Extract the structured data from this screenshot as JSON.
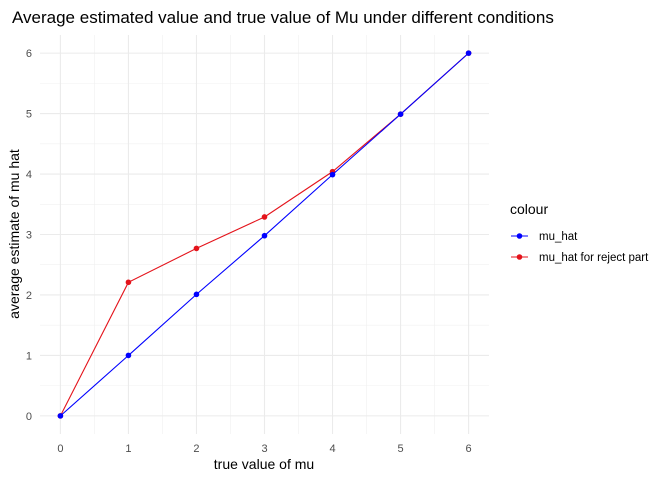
{
  "chart_data": {
    "type": "line",
    "title": "Average estimated value and true value of Mu under different conditions",
    "xlabel": "true value of mu",
    "ylabel": "average estimate of mu hat",
    "x": [
      0,
      1,
      2,
      3,
      4,
      5,
      6
    ],
    "xlim": [
      -0.3,
      6.3
    ],
    "ylim": [
      -0.3,
      6.3
    ],
    "x_ticks": [
      "0",
      "1",
      "2",
      "3",
      "4",
      "5",
      "6"
    ],
    "y_ticks": [
      "0",
      "1",
      "2",
      "3",
      "4",
      "5",
      "6"
    ],
    "grid": true,
    "legend": {
      "title": "colour",
      "position": "right"
    },
    "series": [
      {
        "name": "mu_hat",
        "color": "#0000ff",
        "values": [
          0.0,
          1.0,
          2.01,
          2.98,
          3.99,
          4.99,
          6.0
        ]
      },
      {
        "name": "mu_hat for reject part",
        "color": "#e4131b",
        "values": [
          0.0,
          2.21,
          2.77,
          3.29,
          4.04,
          4.99,
          6.0
        ]
      }
    ]
  }
}
